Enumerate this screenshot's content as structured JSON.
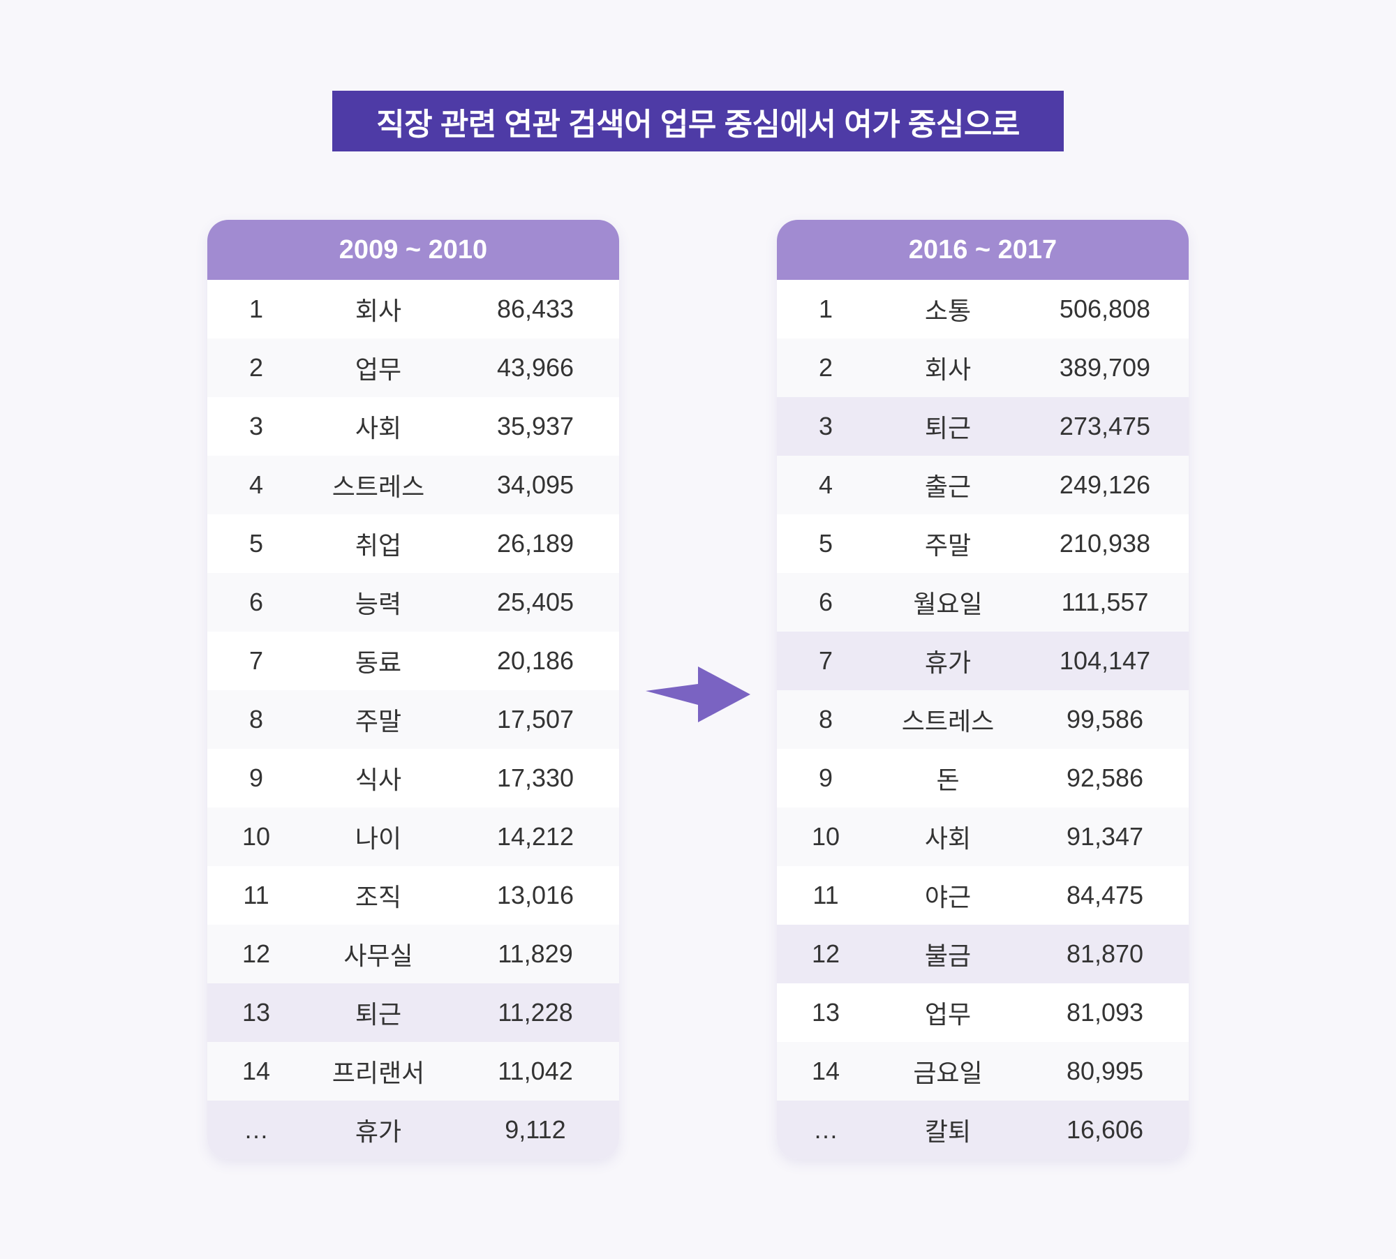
{
  "title": "직장 관련 연관 검색어 업무 중심에서 여가 중심으로",
  "colors": {
    "title_bg": "#4e3ba6",
    "header_bg": "#a18bd1",
    "highlight_row": "#edeaf5",
    "arrow": "#7a63c2"
  },
  "arrow_icon": "right-arrow-icon",
  "left_table": {
    "period": "2009 ~ 2010",
    "rows": [
      {
        "rank": "1",
        "word": "회사",
        "count": "86,433"
      },
      {
        "rank": "2",
        "word": "업무",
        "count": "43,966"
      },
      {
        "rank": "3",
        "word": "사회",
        "count": "35,937"
      },
      {
        "rank": "4",
        "word": "스트레스",
        "count": "34,095"
      },
      {
        "rank": "5",
        "word": "취업",
        "count": "26,189"
      },
      {
        "rank": "6",
        "word": "능력",
        "count": "25,405"
      },
      {
        "rank": "7",
        "word": "동료",
        "count": "20,186"
      },
      {
        "rank": "8",
        "word": "주말",
        "count": "17,507"
      },
      {
        "rank": "9",
        "word": "식사",
        "count": "17,330"
      },
      {
        "rank": "10",
        "word": "나이",
        "count": "14,212"
      },
      {
        "rank": "11",
        "word": "조직",
        "count": "13,016"
      },
      {
        "rank": "12",
        "word": "사무실",
        "count": "11,829"
      },
      {
        "rank": "13",
        "word": "퇴근",
        "count": "11,228"
      },
      {
        "rank": "14",
        "word": "프리랜서",
        "count": "11,042"
      },
      {
        "rank": "…",
        "word": "휴가",
        "count": "9,112"
      }
    ]
  },
  "right_table": {
    "period": "2016 ~ 2017",
    "rows": [
      {
        "rank": "1",
        "word": "소통",
        "count": "506,808"
      },
      {
        "rank": "2",
        "word": "회사",
        "count": "389,709"
      },
      {
        "rank": "3",
        "word": "퇴근",
        "count": "273,475"
      },
      {
        "rank": "4",
        "word": "출근",
        "count": "249,126"
      },
      {
        "rank": "5",
        "word": "주말",
        "count": "210,938"
      },
      {
        "rank": "6",
        "word": "월요일",
        "count": "111,557"
      },
      {
        "rank": "7",
        "word": "휴가",
        "count": "104,147"
      },
      {
        "rank": "8",
        "word": "스트레스",
        "count": "99,586"
      },
      {
        "rank": "9",
        "word": "돈",
        "count": "92,586"
      },
      {
        "rank": "10",
        "word": "사회",
        "count": "91,347"
      },
      {
        "rank": "11",
        "word": "야근",
        "count": "84,475"
      },
      {
        "rank": "12",
        "word": "불금",
        "count": "81,870"
      },
      {
        "rank": "13",
        "word": "업무",
        "count": "81,093"
      },
      {
        "rank": "14",
        "word": "금요일",
        "count": "80,995"
      },
      {
        "rank": "…",
        "word": "칼퇴",
        "count": "16,606"
      }
    ]
  }
}
